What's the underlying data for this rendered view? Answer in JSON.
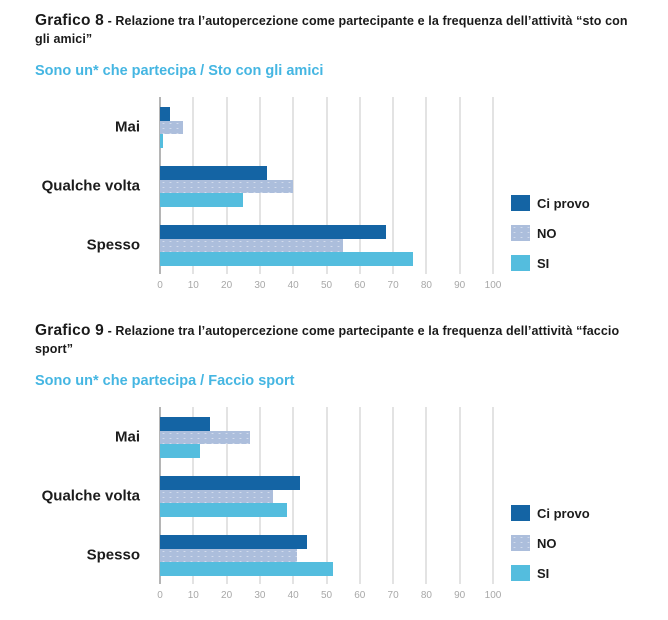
{
  "styles": {
    "title_color": "#1a1a1a",
    "subtitle_color": "#45B6E2",
    "tick_color": "#a8a8a8",
    "gridline_color": "#e3e3e3",
    "zeroline_color": "#b5b5b5",
    "background": "#ffffff"
  },
  "chart_data": [
    {
      "type": "bar",
      "orientation": "horizontal",
      "title_prefix": "Grafico 8",
      "title_rest": "- Relazione tra l’autopercezione come partecipante e la frequenza dell’attività “sto con gli amici”",
      "subtitle": "Sono un* che partecipa / Sto con gli amici",
      "categories": [
        "Mai",
        "Qualche volta",
        "Spesso"
      ],
      "series": [
        {
          "name": "Ci provo",
          "color": "#1464A4",
          "textured": false,
          "values": [
            3,
            32,
            68
          ]
        },
        {
          "name": "NO",
          "color": "#ACBEDC",
          "textured": true,
          "values": [
            7,
            40,
            55
          ]
        },
        {
          "name": "SI",
          "color": "#54BDDE",
          "textured": false,
          "values": [
            1,
            25,
            76
          ]
        }
      ],
      "xlim": [
        0,
        100
      ],
      "xticks": [
        0,
        10,
        20,
        30,
        40,
        50,
        60,
        70,
        80,
        90,
        100
      ],
      "grid": true,
      "legend_position": "right"
    },
    {
      "type": "bar",
      "orientation": "horizontal",
      "title_prefix": "Grafico 9",
      "title_rest": "- Relazione tra l’autopercezione come partecipante e la frequenza dell’attività “faccio sport”",
      "subtitle": "Sono un* che partecipa / Faccio sport",
      "categories": [
        "Mai",
        "Qualche volta",
        "Spesso"
      ],
      "series": [
        {
          "name": "Ci provo",
          "color": "#1464A4",
          "textured": false,
          "values": [
            15,
            42,
            44
          ]
        },
        {
          "name": "NO",
          "color": "#ACBEDC",
          "textured": true,
          "values": [
            27,
            34,
            41
          ]
        },
        {
          "name": "SI",
          "color": "#54BDDE",
          "textured": false,
          "values": [
            12,
            38,
            52
          ]
        }
      ],
      "xlim": [
        0,
        100
      ],
      "xticks": [
        0,
        10,
        20,
        30,
        40,
        50,
        60,
        70,
        80,
        90,
        100
      ],
      "grid": true,
      "legend_position": "right"
    }
  ]
}
